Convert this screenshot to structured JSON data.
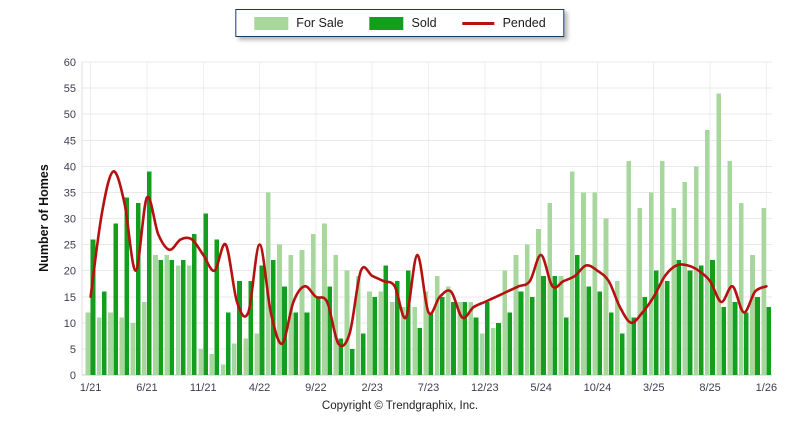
{
  "legend": {
    "items": [
      {
        "label": "For Sale",
        "type": "bar",
        "color": "#a7d79c"
      },
      {
        "label": "Sold",
        "type": "bar",
        "color": "#149e20"
      },
      {
        "label": "Pended",
        "type": "line",
        "color": "#b61111"
      }
    ]
  },
  "y_axis": {
    "title": "Number of Homes",
    "min": 0,
    "max": 60,
    "step": 5
  },
  "footer": {
    "copyright": "Copyright © Trendgraphix, Inc."
  },
  "chart_data": {
    "type": "bar",
    "title": "",
    "xlabel": "",
    "ylabel": "Number of Homes",
    "ylim": [
      0,
      60
    ],
    "grid": true,
    "tick_every": 5,
    "legend_position": "top-center",
    "categories": [
      "1/21",
      "2/21",
      "3/21",
      "4/21",
      "5/21",
      "6/21",
      "7/21",
      "8/21",
      "9/21",
      "10/21",
      "11/21",
      "12/21",
      "1/22",
      "2/22",
      "3/22",
      "4/22",
      "5/22",
      "6/22",
      "7/22",
      "8/22",
      "9/22",
      "10/22",
      "11/22",
      "12/22",
      "1/23",
      "2/23",
      "3/23",
      "4/23",
      "5/23",
      "6/23",
      "7/23",
      "8/23",
      "9/23",
      "10/23",
      "11/23",
      "12/23",
      "1/24",
      "2/24",
      "3/24",
      "4/24",
      "5/24",
      "6/24",
      "7/24",
      "8/24",
      "9/24",
      "10/24",
      "11/24",
      "12/24",
      "1/25",
      "2/25",
      "3/25",
      "4/25",
      "5/25",
      "6/25",
      "7/25",
      "8/25",
      "9/25",
      "10/25",
      "11/25",
      "12/25",
      "1/26"
    ],
    "series": [
      {
        "name": "For Sale",
        "type": "bar",
        "color": "#a7d79c",
        "values": [
          12,
          11,
          12,
          11,
          10,
          14,
          23,
          23,
          21,
          21,
          5,
          4,
          2,
          6,
          7,
          8,
          35,
          25,
          23,
          24,
          27,
          29,
          23,
          20,
          19,
          16,
          16,
          14,
          13,
          13,
          16,
          19,
          17,
          14,
          14,
          8,
          9,
          20,
          23,
          25,
          28,
          33,
          19,
          39,
          35,
          35,
          30,
          18,
          41,
          32,
          35,
          41,
          32,
          37,
          40,
          47,
          54,
          41,
          33,
          23,
          32
        ]
      },
      {
        "name": "Sold",
        "type": "bar",
        "color": "#149e20",
        "values": [
          26,
          16,
          29,
          34,
          33,
          39,
          22,
          22,
          22,
          27,
          31,
          26,
          12,
          18,
          18,
          21,
          22,
          17,
          12,
          12,
          15,
          17,
          7,
          5,
          8,
          15,
          21,
          18,
          20,
          9,
          12,
          15,
          14,
          14,
          11,
          14,
          10,
          12,
          16,
          15,
          19,
          19,
          11,
          23,
          17,
          16,
          12,
          8,
          11,
          15,
          20,
          18,
          22,
          20,
          21,
          22,
          13,
          14,
          12,
          15,
          13
        ]
      },
      {
        "name": "Pended",
        "type": "line",
        "color": "#b61111",
        "values": [
          15,
          31,
          39,
          33,
          20,
          34,
          27,
          24,
          26,
          26,
          23,
          20,
          25,
          14,
          12,
          25,
          12,
          6,
          14,
          17,
          15,
          14,
          6,
          8,
          20,
          19,
          18,
          17,
          11,
          23,
          12,
          15,
          16,
          11,
          13,
          14,
          15,
          16,
          17,
          18,
          23,
          17,
          18,
          19,
          21,
          20,
          18,
          13,
          10,
          12,
          15,
          19,
          21,
          21,
          20,
          18,
          14,
          17,
          12,
          16,
          17
        ]
      }
    ]
  }
}
